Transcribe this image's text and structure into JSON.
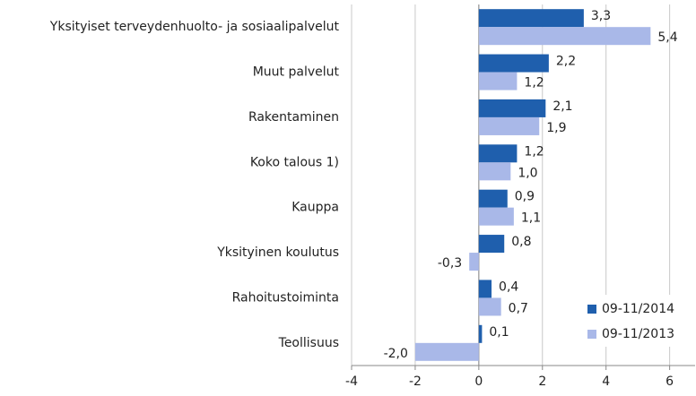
{
  "chart_data": {
    "type": "hbar",
    "categories": [
      "Yksityiset terveydenhuolto- ja sosiaalipalvelut",
      "Muut palvelut",
      "Rakentaminen",
      "Koko talous 1)",
      "Kauppa",
      "Yksityinen koulutus",
      "Rahoitustoiminta",
      "Teollisuus"
    ],
    "series": [
      {
        "name": "09-11/2014",
        "color": "#1f5fad",
        "values": [
          3.3,
          2.2,
          2.1,
          1.2,
          0.9,
          0.8,
          0.4,
          0.1
        ],
        "value_labels": [
          "3,3",
          "2,2",
          "2,1",
          "1,2",
          "0,9",
          "0,8",
          "0,4",
          "0,1"
        ]
      },
      {
        "name": "09-11/2013",
        "color": "#a9b8e8",
        "values": [
          5.4,
          1.2,
          1.9,
          1.0,
          1.1,
          -0.3,
          0.7,
          -2.0
        ],
        "value_labels": [
          "5,4",
          "1,2",
          "1,9",
          "1,0",
          "1,1",
          "-0,3",
          "0,7",
          "-2,0"
        ]
      }
    ],
    "xlim": [
      -4,
      6.8
    ],
    "xticks": [
      -4,
      -2,
      0,
      2,
      4,
      6
    ],
    "grid": true,
    "legend": "lower-right"
  }
}
